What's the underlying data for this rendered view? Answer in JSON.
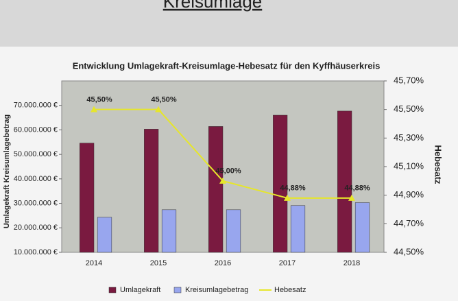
{
  "page_title": "Kreisumlage",
  "chart_data": {
    "type": "bar_line",
    "title": "Entwicklung Umlagekraft-Kreisumlage-Hebesatz für den Kyffhäuserkreis",
    "ylabel": "Umlagekraft Kreisumlagebetrag",
    "y2label": "Hebesatz",
    "categories": [
      "2014",
      "2015",
      "2016",
      "2017",
      "2018"
    ],
    "series": [
      {
        "name": "Umlagekraft",
        "type": "bar",
        "color": "#7a1a40",
        "values": [
          54600000,
          60300000,
          61400000,
          66000000,
          67700000
        ]
      },
      {
        "name": "Kreisumlagebetrag",
        "type": "bar",
        "color": "#98a6ee",
        "values": [
          24300000,
          27400000,
          27400000,
          29100000,
          30300000
        ]
      },
      {
        "name": "Hebesatz",
        "type": "line",
        "axis": "y2",
        "color": "#e6e62a",
        "values": [
          45.5,
          45.5,
          45.0,
          44.88,
          44.88
        ],
        "value_labels": [
          "45,50%",
          "45,50%",
          "45,00%",
          "44,88%",
          "44,88%"
        ]
      }
    ],
    "ylim": [
      10000000,
      80000000
    ],
    "yticks": [
      {
        "value": 10000000,
        "label": "10.000.000 €"
      },
      {
        "value": 20000000,
        "label": "20.000.000 €"
      },
      {
        "value": 30000000,
        "label": "30.000.000 €"
      },
      {
        "value": 40000000,
        "label": "40.000.000 €"
      },
      {
        "value": 50000000,
        "label": "50.000.000 €"
      },
      {
        "value": 60000000,
        "label": "60.000.000 €"
      },
      {
        "value": 70000000,
        "label": "70.000.000 €"
      }
    ],
    "y2lim": [
      44.5,
      45.7
    ],
    "y2ticks": [
      {
        "value": 44.5,
        "label": "44,50%"
      },
      {
        "value": 44.7,
        "label": "44,70%"
      },
      {
        "value": 44.9,
        "label": "44,90%"
      },
      {
        "value": 45.1,
        "label": "45,10%"
      },
      {
        "value": 45.3,
        "label": "45,30%"
      },
      {
        "value": 45.5,
        "label": "45,50%"
      },
      {
        "value": 45.7,
        "label": "45,70%"
      }
    ],
    "legend": "bottom"
  }
}
